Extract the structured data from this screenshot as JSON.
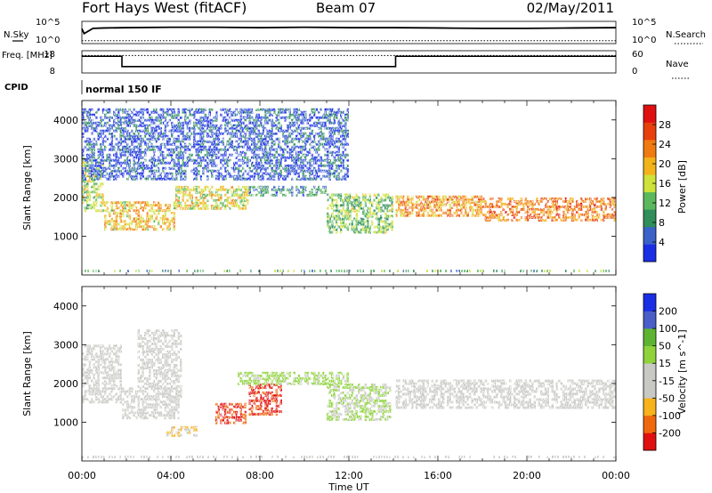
{
  "header": {
    "station": "Fort Hays West (fitACF)",
    "beam": "Beam 07",
    "date": "02/May/2011"
  },
  "colors": {
    "power": [
      "#1a2ee6",
      "#3a62c8",
      "#2f8e5a",
      "#5cb85c",
      "#cde23a",
      "#f2b21a",
      "#f07a12",
      "#e8400c",
      "#e01010"
    ],
    "velocity": [
      "#e01010",
      "#f0680e",
      "#f7b21c",
      "#c8c8c4",
      "#c8c8c4",
      "#8ed23c",
      "#5eb432",
      "#4a5ec8",
      "#1a2ee6"
    ],
    "ground_scatter": "#c8c8c4"
  },
  "chart_data": [
    {
      "type": "line",
      "name": "noise",
      "left_label": "N.Sky",
      "right_label": "N.Search",
      "left_ticks": [
        "10^5",
        "10^0"
      ],
      "right_ticks": [
        "10^5",
        "10^0"
      ],
      "scale": "log",
      "series": [
        {
          "name": "N.Sky",
          "style": "solid",
          "x": [
            0,
            0.1,
            0.5,
            1,
            2,
            4,
            6,
            8,
            10,
            12,
            14,
            16,
            18,
            20,
            22,
            24
          ],
          "y": [
            3.5,
            2.2,
            3.6,
            3.7,
            3.8,
            3.9,
            3.9,
            3.8,
            3.9,
            3.8,
            3.8,
            3.7,
            3.6,
            3.6,
            3.7,
            3.8
          ]
        },
        {
          "name": "N.Search",
          "style": "dotted",
          "x": [
            0,
            24
          ],
          "y": [
            0.3,
            0.3
          ]
        }
      ]
    },
    {
      "type": "line",
      "name": "frequency",
      "left_label": "Freq. [MHz]",
      "right_label": "Nave",
      "left_ticks": [
        "18",
        "8"
      ],
      "right_ticks": [
        "60",
        "0"
      ],
      "series": [
        {
          "name": "Freq.",
          "style": "solid",
          "x": [
            0,
            1.8,
            1.8,
            14.1,
            14.1,
            24
          ],
          "y": [
            16.5,
            16.5,
            10.0,
            10.0,
            16.5,
            16.5
          ]
        },
        {
          "name": "Nave",
          "style": "dotted",
          "x": [
            0,
            24
          ],
          "y": [
            17,
            17
          ]
        }
      ]
    },
    {
      "type": "table",
      "name": "cpid",
      "label": "CPID",
      "value": "normal 150 IF"
    },
    {
      "type": "heatmap",
      "name": "power",
      "xlabel": "Time UT",
      "ylabel": "Slant Range [km]",
      "x_ticks": [
        "00:00",
        "04:00",
        "08:00",
        "12:00",
        "16:00",
        "20:00",
        "00:00"
      ],
      "xlim": [
        0,
        24
      ],
      "ylim": [
        0,
        4500
      ],
      "y_ticks": [
        1000,
        2000,
        3000,
        4000
      ],
      "colorbar_label": "Power [dB]",
      "colorbar_ticks": [
        4,
        8,
        12,
        16,
        20,
        24,
        28
      ],
      "clim": [
        0,
        30
      ],
      "bands": [
        {
          "t": [
            0,
            1
          ],
          "r": [
            1650,
            3000
          ],
          "level": 14
        },
        {
          "t": [
            1,
            4.2
          ],
          "r": [
            1150,
            1900
          ],
          "level": 18
        },
        {
          "t": [
            4.2,
            7.5
          ],
          "r": [
            1700,
            2300
          ],
          "level": 16
        },
        {
          "t": [
            7.5,
            11
          ],
          "r": [
            2050,
            2300
          ],
          "level": 8
        },
        {
          "t": [
            11,
            14
          ],
          "r": [
            1100,
            2100
          ],
          "level": 12
        },
        {
          "t": [
            14.1,
            18
          ],
          "r": [
            1500,
            2050
          ],
          "level": 20
        },
        {
          "t": [
            18,
            24
          ],
          "r": [
            1400,
            2000
          ],
          "level": 22
        },
        {
          "t": [
            0,
            12
          ],
          "r": [
            2500,
            4300
          ],
          "level": 4
        }
      ]
    },
    {
      "type": "heatmap",
      "name": "velocity",
      "xlabel": "Time UT",
      "ylabel": "Slant Range [km]",
      "x_ticks": [
        "00:00",
        "04:00",
        "08:00",
        "12:00",
        "16:00",
        "20:00",
        "00:00"
      ],
      "xlim": [
        0,
        24
      ],
      "ylim": [
        0,
        4500
      ],
      "y_ticks": [
        1000,
        2000,
        3000,
        4000
      ],
      "colorbar_label": "Velocity [m s^-1]",
      "colorbar_ticks": [
        "200",
        "100",
        "50",
        "15",
        "-15",
        "-50",
        "-100",
        "-200"
      ],
      "clim": [
        -250,
        250
      ],
      "bands": [
        {
          "t": [
            0,
            1.8
          ],
          "r": [
            1500,
            3000
          ],
          "value": 0
        },
        {
          "t": [
            1.8,
            4.5
          ],
          "r": [
            1100,
            1900
          ],
          "value": 0
        },
        {
          "t": [
            2.5,
            4.5
          ],
          "r": [
            1900,
            3400
          ],
          "value": -60
        },
        {
          "t": [
            3.8,
            5.2
          ],
          "r": [
            650,
            900
          ],
          "value": -80
        },
        {
          "t": [
            6,
            7.4
          ],
          "r": [
            950,
            1500
          ],
          "value": -200
        },
        {
          "t": [
            7.5,
            9
          ],
          "r": [
            1200,
            2000
          ],
          "value": -200
        },
        {
          "t": [
            7,
            12
          ],
          "r": [
            2000,
            2300
          ],
          "value": 40
        },
        {
          "t": [
            11,
            13.8
          ],
          "r": [
            1100,
            2000
          ],
          "value": 30
        },
        {
          "t": [
            14.1,
            24
          ],
          "r": [
            1400,
            2100
          ],
          "value": 0
        }
      ]
    }
  ]
}
